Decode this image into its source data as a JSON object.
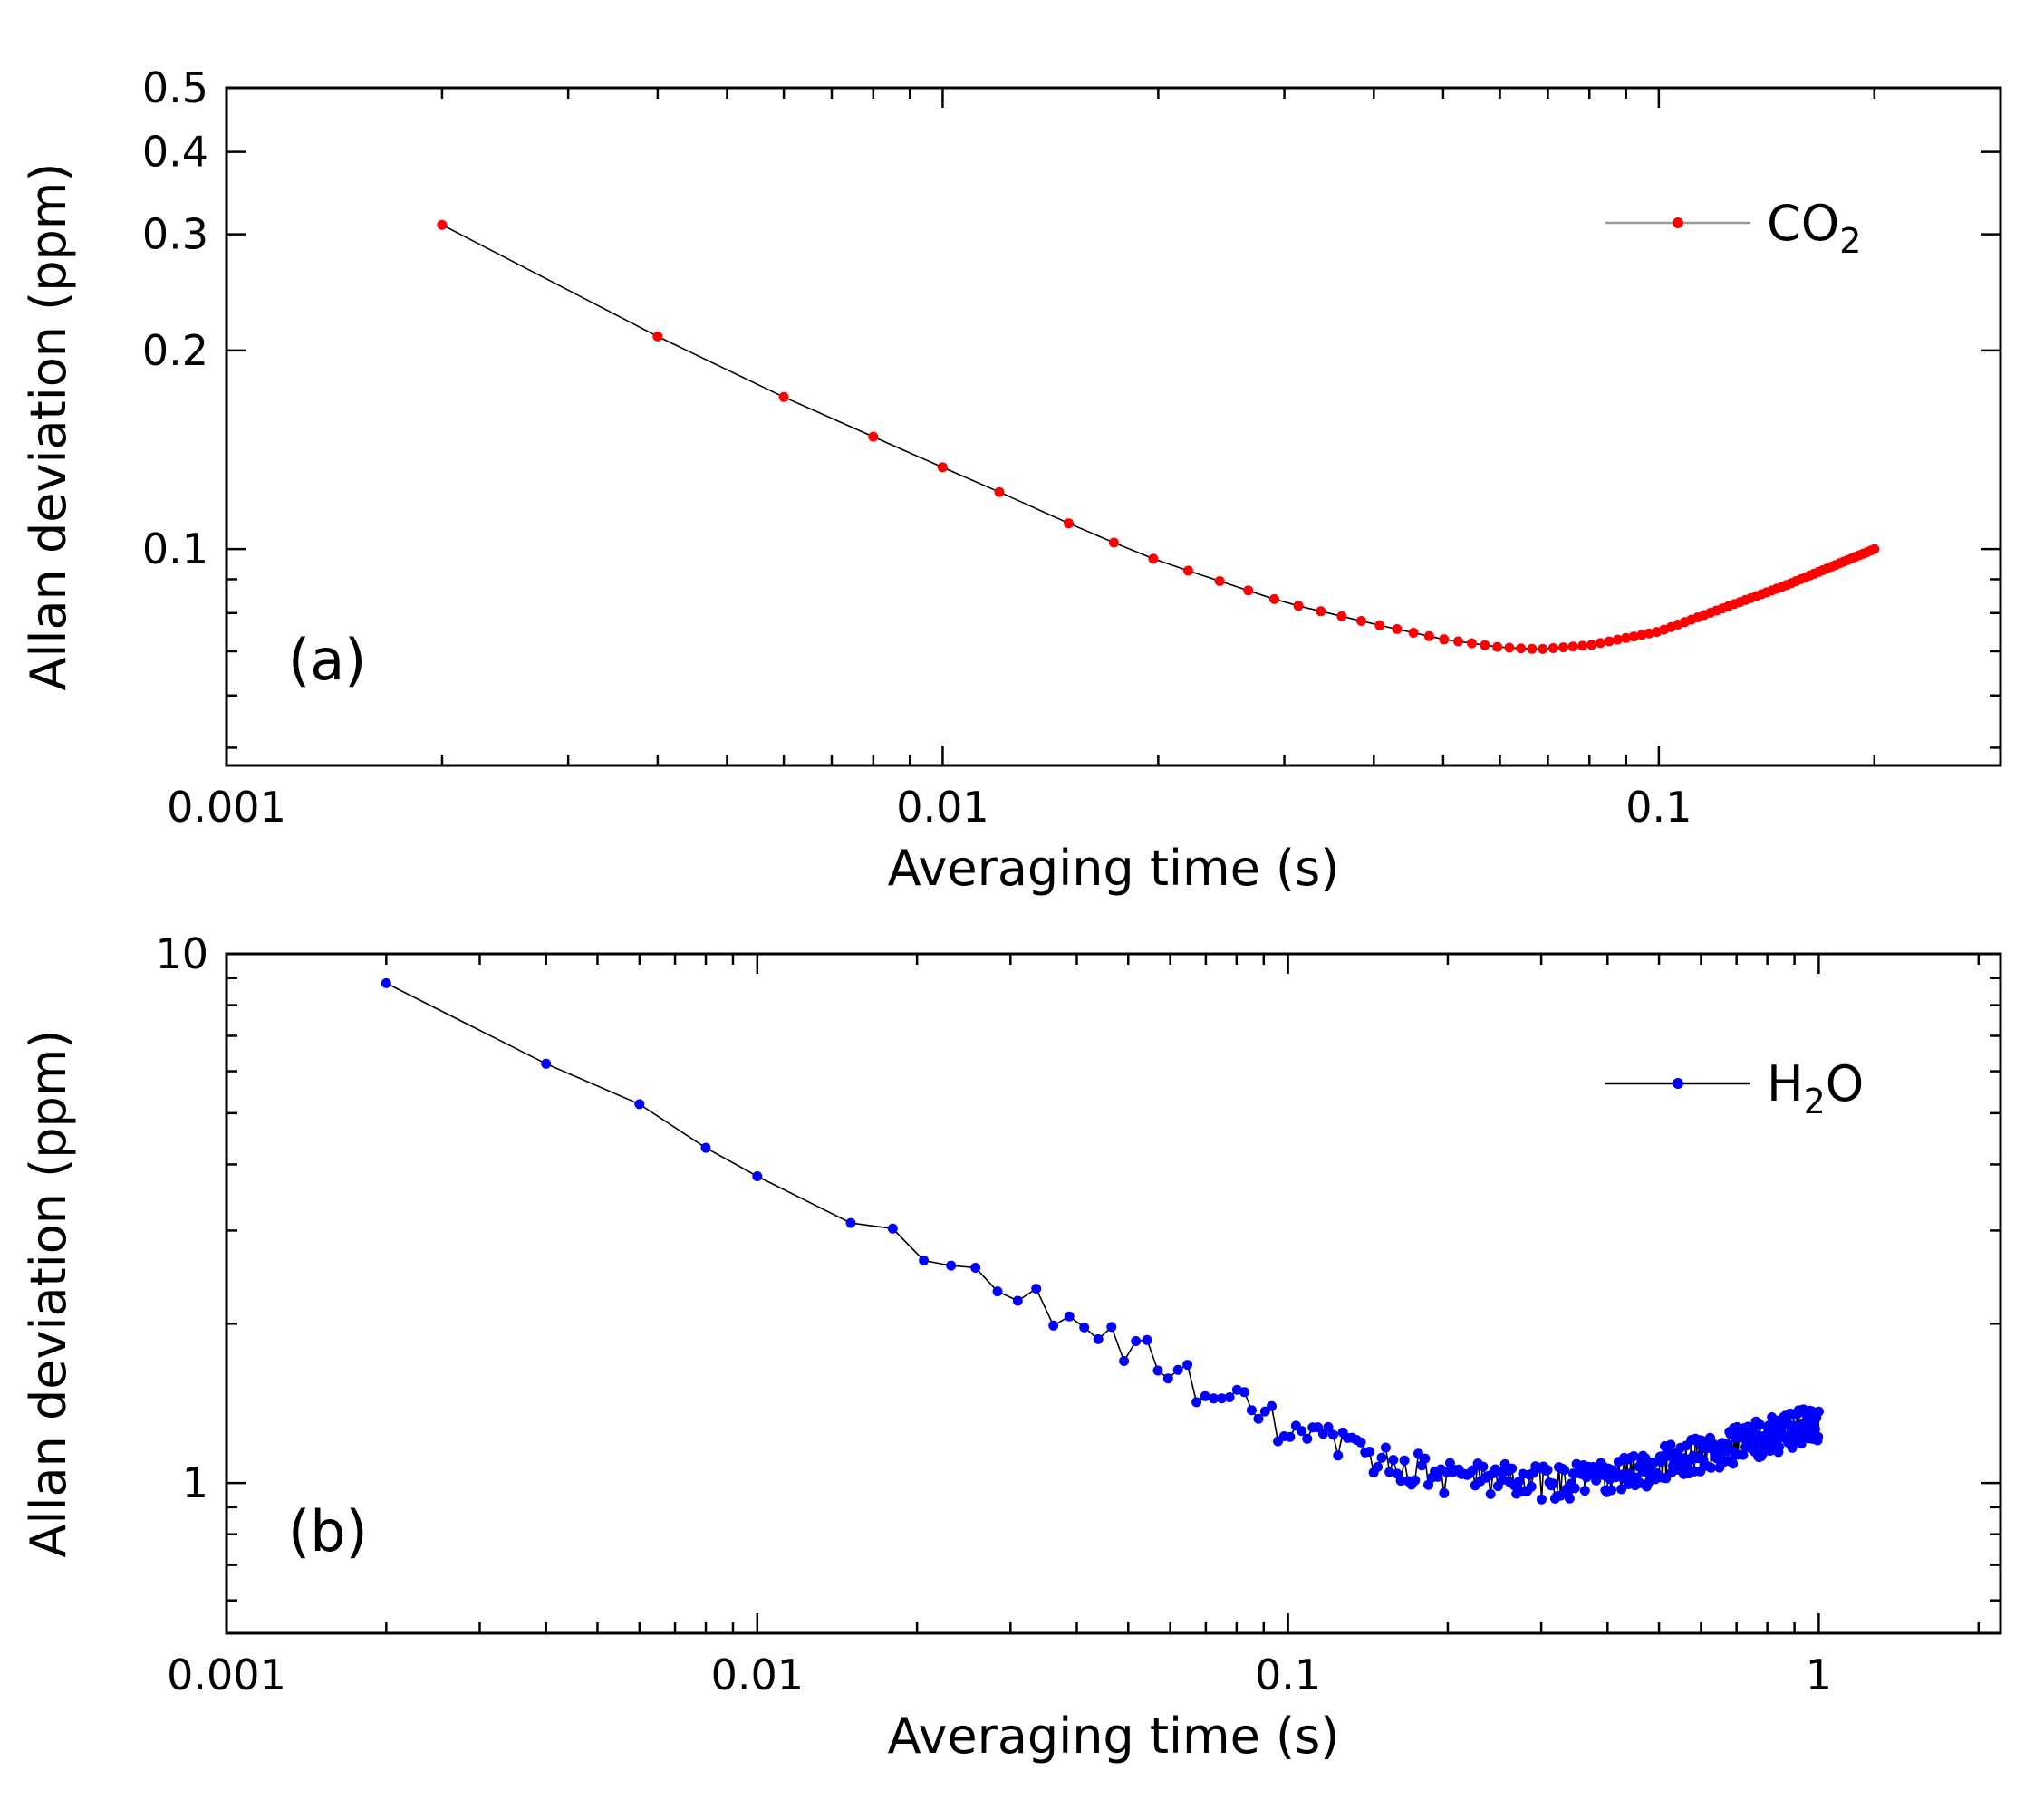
{
  "chart_data": [
    {
      "type": "line",
      "panel_label": "(a)",
      "xlabel": "Averaging time (s)",
      "ylabel": "Allan deviation (ppm)",
      "xscale": "log",
      "yscale": "log",
      "xlim": [
        0.001,
        0.3
      ],
      "ylim": [
        0.047,
        0.5
      ],
      "xticks": [
        {
          "value": 0.001,
          "label": "0.001"
        },
        {
          "value": 0.01,
          "label": "0.01"
        },
        {
          "value": 0.1,
          "label": "0.1"
        }
      ],
      "yticks": [
        {
          "value": 0.1,
          "label": "0.1"
        },
        {
          "value": 0.2,
          "label": "0.2"
        },
        {
          "value": 0.3,
          "label": "0.3"
        },
        {
          "value": 0.4,
          "label": "0.4"
        },
        {
          "value": 0.5,
          "label": "0.5"
        }
      ],
      "legend": {
        "position": "top-right",
        "label_main": "CO",
        "label_sub": "2"
      },
      "series": [
        {
          "name": "CO2",
          "color": "#ff0000",
          "line_color": "#000000",
          "noise": 0,
          "anchors": [
            [
              0.002,
              0.31
            ],
            [
              0.004,
              0.21
            ],
            [
              0.006,
              0.17
            ],
            [
              0.008,
              0.148
            ],
            [
              0.01,
              0.133
            ],
            [
              0.012,
              0.122
            ],
            [
              0.016,
              0.106
            ],
            [
              0.02,
              0.096
            ],
            [
              0.03,
              0.083
            ],
            [
              0.04,
              0.077
            ],
            [
              0.05,
              0.073
            ],
            [
              0.06,
              0.071
            ],
            [
              0.068,
              0.0705
            ],
            [
              0.08,
              0.0715
            ],
            [
              0.1,
              0.075
            ],
            [
              0.15,
              0.088
            ],
            [
              0.2,
              0.1
            ]
          ],
          "dense_from": 0.015,
          "dense_count": 80
        }
      ]
    },
    {
      "type": "line",
      "panel_label": "(b)",
      "xlabel": "Averaging time (s)",
      "ylabel": "Allan deviation (ppm)",
      "xscale": "log",
      "yscale": "log",
      "xlim": [
        0.001,
        2.2
      ],
      "ylim": [
        0.52,
        10
      ],
      "xticks": [
        {
          "value": 0.001,
          "label": "0.001"
        },
        {
          "value": 0.01,
          "label": "0.01"
        },
        {
          "value": 0.1,
          "label": "0.1"
        },
        {
          "value": 1,
          "label": "1"
        }
      ],
      "yticks": [
        {
          "value": 1,
          "label": "1"
        },
        {
          "value": 10,
          "label": "10"
        }
      ],
      "legend": {
        "position": "top-right",
        "label_main": "H",
        "label_sub": "2",
        "label_end": "O"
      },
      "series": [
        {
          "name": "H2O",
          "color": "#0000ff",
          "line_color": "#000000",
          "noise": 0.035,
          "anchors": [
            [
              0.002,
              8.8
            ],
            [
              0.004,
              6.2
            ],
            [
              0.006,
              5.2
            ],
            [
              0.008,
              4.3
            ],
            [
              0.01,
              3.8
            ],
            [
              0.015,
              3.1
            ],
            [
              0.02,
              2.7
            ],
            [
              0.03,
              2.3
            ],
            [
              0.05,
              1.8
            ],
            [
              0.08,
              1.4
            ],
            [
              0.1,
              1.25
            ],
            [
              0.15,
              1.1
            ],
            [
              0.2,
              1.03
            ],
            [
              0.3,
              1.0
            ],
            [
              0.4,
              1.02
            ],
            [
              0.5,
              1.08
            ],
            [
              0.7,
              1.18
            ],
            [
              1.0,
              1.3
            ]
          ],
          "dense_from": 0.018,
          "dense_count": 380
        }
      ]
    }
  ]
}
